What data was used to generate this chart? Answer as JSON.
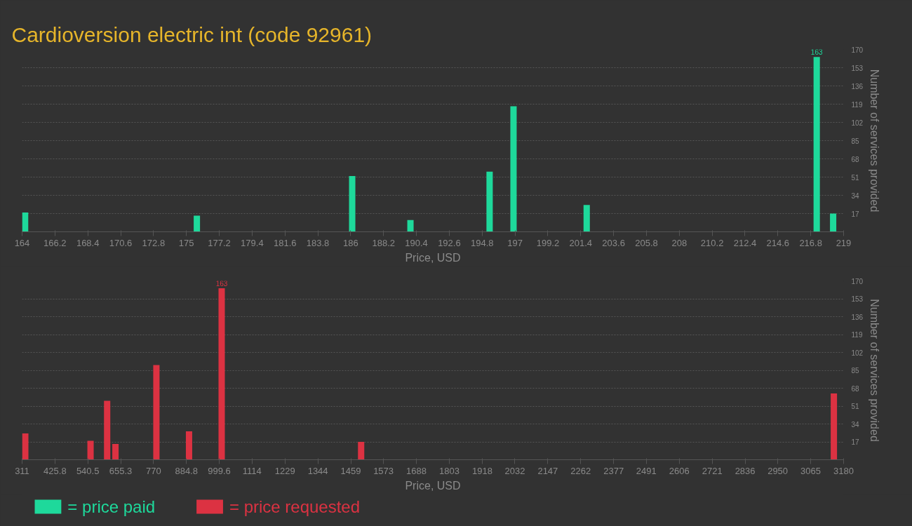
{
  "chart_data": [
    {
      "type": "bar",
      "title": "Cardioversion electric int (code 92961)",
      "xlabel": "Price, USD",
      "ylabel": "Number of services provided",
      "x": [
        164.2,
        175.7,
        186.1,
        190.0,
        195.3,
        196.9,
        201.8,
        217.2,
        218.3
      ],
      "series": [
        {
          "name": "= price paid",
          "color": "#1ed99b",
          "values": [
            18,
            15,
            52,
            11,
            56,
            117,
            25,
            163,
            17
          ],
          "value_labels": [
            null,
            null,
            null,
            null,
            null,
            null,
            null,
            "163",
            null
          ]
        }
      ],
      "xlim": [
        164,
        219
      ],
      "xticks": [
        164,
        166.2,
        168.4,
        170.6,
        172.8,
        175,
        177.2,
        179.4,
        181.6,
        183.8,
        186,
        188.2,
        190.4,
        192.6,
        194.8,
        197,
        199.2,
        201.4,
        203.6,
        205.8,
        208,
        210.2,
        212.4,
        214.6,
        216.8,
        219
      ],
      "ylim": [
        0,
        170
      ],
      "yticks": [
        17,
        34,
        51,
        68,
        85,
        102,
        119,
        136,
        153,
        170
      ],
      "grid": "y",
      "legend": "bottom"
    },
    {
      "type": "bar",
      "xlabel": "Price, USD",
      "ylabel": "Number of services provided",
      "x": [
        322,
        550,
        608,
        637,
        780,
        894,
        1008,
        1495,
        3146
      ],
      "series": [
        {
          "name": "= price requested",
          "color": "#dc3242",
          "values": [
            25,
            18,
            56,
            15,
            90,
            27,
            163,
            17,
            63
          ],
          "value_labels": [
            null,
            null,
            null,
            null,
            null,
            null,
            "163",
            null,
            null
          ]
        }
      ],
      "xlim": [
        311,
        3180
      ],
      "xticks": [
        311,
        425.8,
        540.5,
        655.3,
        770,
        884.8,
        999.6,
        1114,
        1229,
        1344,
        1459,
        1573,
        1688,
        1803,
        1918,
        2032,
        2147,
        2262,
        2377,
        2491,
        2606,
        2721,
        2836,
        2950,
        3065,
        3180
      ],
      "ylim": [
        0,
        170
      ],
      "yticks": [
        17,
        34,
        51,
        68,
        85,
        102,
        119,
        136,
        153,
        170
      ],
      "grid": "y",
      "legend": "bottom"
    }
  ]
}
